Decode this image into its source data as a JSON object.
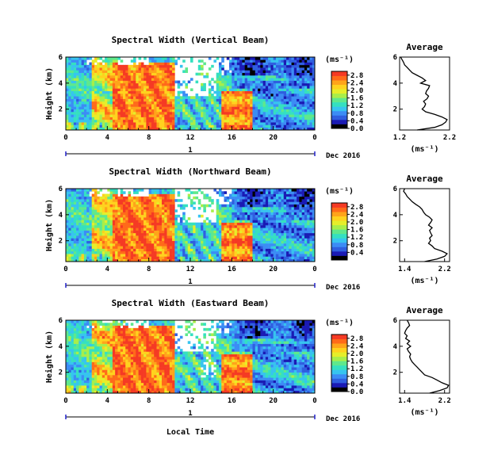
{
  "figure": {
    "colorscale": [
      "#000000",
      "#1a1ab4",
      "#2f5fe0",
      "#3c8cf5",
      "#37c4ef",
      "#35e0c0",
      "#5fe88c",
      "#a8ee4a",
      "#e6ee2a",
      "#ffd21e",
      "#ffa41a",
      "#ff6a1a",
      "#f53a24"
    ],
    "shared": {
      "ylabel": "Height (km)",
      "xlabel": "Local Time",
      "date_label": "Dec 2016",
      "day_label": "1",
      "unit_label": "(ms⁻¹)",
      "average_title": "Average",
      "average_xlabel": "(ms⁻¹)"
    }
  },
  "chart_data": [
    {
      "type": "heatmap",
      "title": "Spectral Width (Vertical Beam)",
      "x_ticks": [
        "0",
        "4",
        "8",
        "12",
        "16",
        "20",
        "0"
      ],
      "y_ticks": [
        "2",
        "4",
        "6"
      ],
      "xlim": [
        0,
        24
      ],
      "ylim": [
        0.4,
        6
      ],
      "colorbar": {
        "ticks": [
          "0.0",
          "0.4",
          "0.8",
          "1.2",
          "1.6",
          "2.0",
          "2.4",
          "2.8"
        ],
        "range": [
          0,
          3.0
        ]
      },
      "average": {
        "x_ticks": [
          "1.2",
          "2.2"
        ],
        "xlim": [
          1.2,
          2.2
        ],
        "y_ticks": [
          "2",
          "4",
          "6"
        ],
        "ylim": [
          0.4,
          6
        ],
        "heights": [
          0.4,
          0.6,
          0.8,
          1.0,
          1.2,
          1.4,
          1.6,
          1.8,
          2.0,
          2.2,
          2.4,
          2.6,
          2.8,
          3.0,
          3.2,
          3.4,
          3.6,
          3.8,
          4.0,
          4.2,
          4.4,
          4.6,
          4.8,
          5.0,
          5.2,
          5.4,
          5.6,
          5.8,
          6.0
        ],
        "values": [
          1.55,
          1.9,
          2.05,
          2.12,
          2.15,
          2.05,
          1.9,
          1.72,
          1.65,
          1.7,
          1.72,
          1.68,
          1.75,
          1.78,
          1.72,
          1.74,
          1.78,
          1.8,
          1.62,
          1.72,
          1.65,
          1.55,
          1.45,
          1.4,
          1.35,
          1.3,
          1.28,
          1.25,
          1.22
        ]
      }
    },
    {
      "type": "heatmap",
      "title": "Spectral Width (Northward Beam)",
      "x_ticks": [
        "0",
        "4",
        "8",
        "12",
        "16",
        "20",
        "0"
      ],
      "y_ticks": [
        "2",
        "4",
        "6"
      ],
      "xlim": [
        0,
        24
      ],
      "ylim": [
        0.4,
        6
      ],
      "colorbar": {
        "ticks": [
          "0.4",
          "0.8",
          "1.2",
          "1.6",
          "2.0",
          "2.4",
          "2.8"
        ],
        "range": [
          0,
          3.0
        ]
      },
      "average": {
        "x_ticks": [
          "1.4",
          "2.2"
        ],
        "xlim": [
          1.3,
          2.3
        ],
        "y_ticks": [
          "2",
          "4",
          "6"
        ],
        "ylim": [
          0.4,
          6
        ],
        "heights": [
          0.4,
          0.6,
          0.8,
          1.0,
          1.2,
          1.4,
          1.6,
          1.8,
          2.0,
          2.2,
          2.4,
          2.6,
          2.8,
          3.0,
          3.2,
          3.4,
          3.6,
          3.8,
          4.0,
          4.2,
          4.4,
          4.6,
          4.8,
          5.0,
          5.2,
          5.4,
          5.6,
          5.8,
          6.0
        ],
        "values": [
          1.8,
          2.05,
          2.2,
          2.25,
          2.15,
          2.0,
          1.95,
          1.88,
          1.92,
          1.9,
          1.95,
          1.92,
          1.9,
          1.95,
          1.88,
          1.92,
          1.95,
          1.9,
          1.82,
          1.78,
          1.75,
          1.7,
          1.62,
          1.55,
          1.5,
          1.45,
          1.42,
          1.38,
          1.4
        ]
      }
    },
    {
      "type": "heatmap",
      "title": "Spectral Width (Eastward Beam)",
      "x_ticks": [
        "0",
        "4",
        "8",
        "12",
        "16",
        "20",
        "0"
      ],
      "y_ticks": [
        "2",
        "4",
        "6"
      ],
      "xlim": [
        0,
        24
      ],
      "ylim": [
        0.4,
        6
      ],
      "colorbar": {
        "ticks": [
          "0.0",
          "0.4",
          "0.8",
          "1.2",
          "1.6",
          "2.0",
          "2.4",
          "2.8"
        ],
        "range": [
          0,
          3.0
        ]
      },
      "average": {
        "x_ticks": [
          "1.4",
          "2.2"
        ],
        "xlim": [
          1.3,
          2.3
        ],
        "y_ticks": [
          "2",
          "4",
          "6"
        ],
        "ylim": [
          0.4,
          6
        ],
        "heights": [
          0.4,
          0.6,
          0.8,
          1.0,
          1.2,
          1.4,
          1.6,
          1.8,
          2.0,
          2.2,
          2.4,
          2.6,
          2.8,
          3.0,
          3.2,
          3.4,
          3.6,
          3.8,
          4.0,
          4.2,
          4.4,
          4.6,
          4.8,
          5.0,
          5.2,
          5.4,
          5.6,
          5.8,
          6.0
        ],
        "values": [
          1.9,
          2.1,
          2.25,
          2.28,
          2.15,
          2.05,
          1.95,
          1.8,
          1.75,
          1.7,
          1.65,
          1.6,
          1.55,
          1.52,
          1.5,
          1.52,
          1.48,
          1.45,
          1.52,
          1.45,
          1.5,
          1.42,
          1.45,
          1.4,
          1.42,
          1.45,
          1.5,
          1.48,
          1.45
        ]
      }
    }
  ]
}
